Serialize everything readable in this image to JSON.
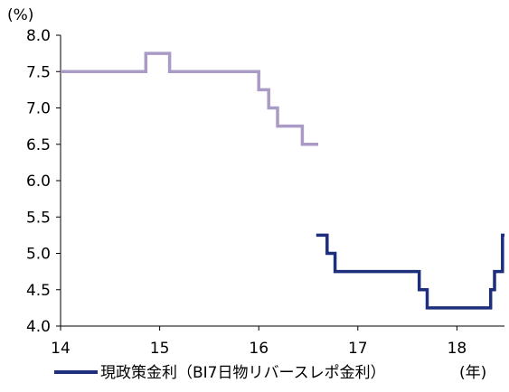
{
  "chart_data": {
    "type": "line",
    "title": "",
    "xlabel": "",
    "ylabel": "",
    "y_unit_label": "(%)",
    "x_unit_label": "(年)",
    "xlim": [
      14,
      18.48
    ],
    "ylim": [
      4.0,
      8.0
    ],
    "x_ticks": [
      14,
      15,
      16,
      17,
      18
    ],
    "x_tick_labels": [
      "14",
      "15",
      "16",
      "17",
      "18"
    ],
    "y_ticks": [
      4.0,
      4.5,
      5.0,
      5.5,
      6.0,
      6.5,
      7.0,
      7.5,
      8.0
    ],
    "y_tick_labels": [
      "4.0",
      "4.5",
      "5.0",
      "5.5",
      "6.0",
      "6.5",
      "7.0",
      "7.5",
      "8.0"
    ],
    "grid": false,
    "legend": "bottom",
    "series": [
      {
        "color": "#a99bc6",
        "step": true,
        "x": [
          14.0,
          14.86,
          15.1,
          16.0,
          16.1,
          16.19,
          16.44,
          16.6
        ],
        "y": [
          7.5,
          7.75,
          7.5,
          7.25,
          7.0,
          6.75,
          6.5,
          6.5
        ]
      },
      {
        "name": "現政策金利（BI7日物リバースレポ金利）",
        "color": "#1c2e7c",
        "step": true,
        "x": [
          16.58,
          16.69,
          16.77,
          17.62,
          17.7,
          18.34,
          18.38,
          18.46,
          18.48
        ],
        "y": [
          5.25,
          5.0,
          4.75,
          4.5,
          4.25,
          4.5,
          4.75,
          5.25,
          5.25
        ]
      }
    ]
  }
}
